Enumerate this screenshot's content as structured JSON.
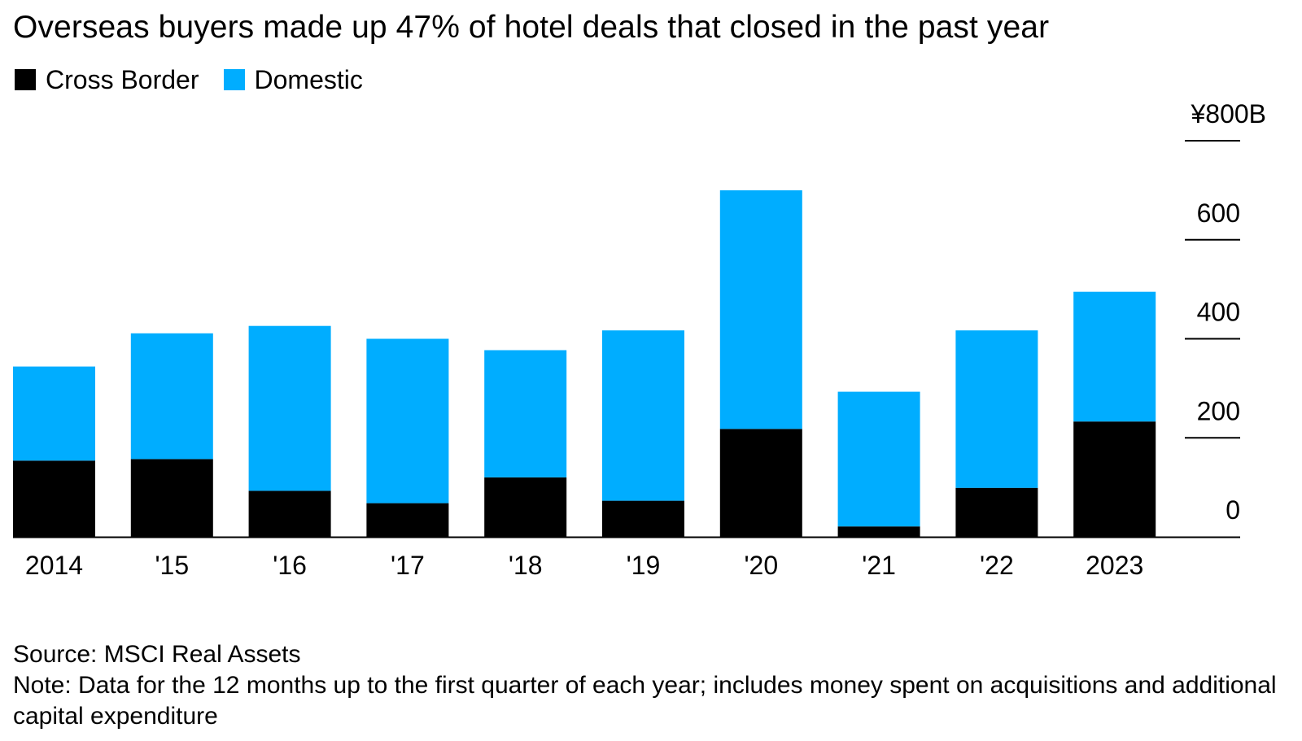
{
  "chart_data": {
    "type": "bar",
    "stacked": true,
    "title": "Overseas buyers made up 47% of hotel deals that closed in the past year",
    "categories": [
      "2014",
      "'15",
      "'16",
      "'17",
      "'18",
      "'19",
      "'20",
      "'21",
      "'22",
      "2023"
    ],
    "series": [
      {
        "name": "Cross Border",
        "color": "#000000",
        "values": [
          154,
          157,
          93,
          68,
          120,
          73,
          218,
          21,
          99,
          233
        ]
      },
      {
        "name": "Domestic",
        "color": "#00adff",
        "values": [
          190,
          254,
          333,
          332,
          257,
          344,
          482,
          272,
          318,
          262
        ]
      }
    ],
    "yaxis": {
      "ticks": [
        0,
        200,
        400,
        600,
        800
      ],
      "tick_labels": [
        "0",
        "200",
        "400",
        "600",
        "¥800B"
      ],
      "position": "right"
    },
    "ylim": [
      0,
      800
    ],
    "grid": false,
    "legend_position": "top-left"
  },
  "footer": {
    "source": "Source: MSCI Real Assets",
    "note": "Note: Data for the 12 months up to the first quarter of each year; includes money spent on acquisitions and additional capital expenditure"
  }
}
